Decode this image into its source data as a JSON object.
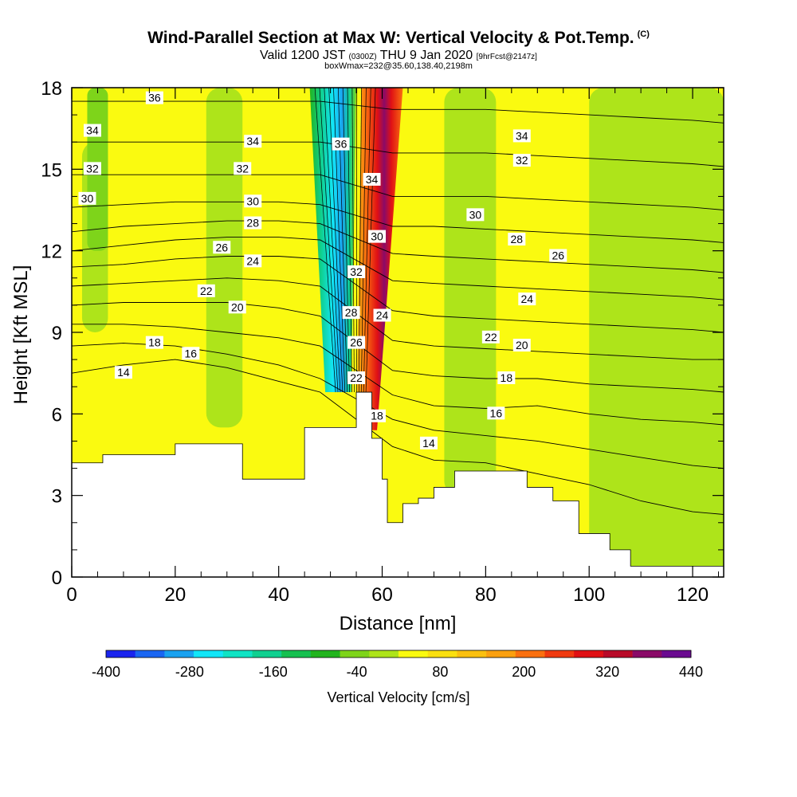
{
  "header": {
    "title": "Wind-Parallel Section at Max W: Vertical Velocity & Pot.Temp.",
    "copyright": "(C)",
    "valid_prefix": "Valid 1200 JST",
    "valid_utc": "(0300Z)",
    "valid_day": "THU 9 Jan 2020",
    "forecast": "[9hrFcst@2147z]",
    "box_info": "boxWmax=232@35.60,138.40,2198m"
  },
  "chart_data": {
    "type": "heatmap",
    "xlabel": "Distance [nm]",
    "ylabel": "Height [Kft MSL]",
    "xlim": [
      0,
      126
    ],
    "ylim": [
      0,
      18
    ],
    "x_ticks": [
      0,
      20,
      40,
      60,
      80,
      100,
      120
    ],
    "y_ticks": [
      0,
      3,
      6,
      9,
      12,
      15,
      18
    ],
    "colorbar": {
      "label": "Vertical Velocity [cm/s]",
      "min": -400,
      "max": 440,
      "tick_labels": [
        -400,
        -280,
        -160,
        -40,
        80,
        200,
        320,
        440
      ],
      "colors": [
        "#1a24ee",
        "#1a66f2",
        "#1aa2f0",
        "#12e6f8",
        "#10e4c4",
        "#10d090",
        "#16c050",
        "#22b41e",
        "#7ed41a",
        "#aee41a",
        "#fafa10",
        "#fae010",
        "#fac010",
        "#faa010",
        "#fa7010",
        "#f03a10",
        "#e01014",
        "#b80a28",
        "#8a0a68",
        "#6a0a90"
      ]
    },
    "terrain_kft": [
      [
        0,
        4.2
      ],
      [
        6,
        4.5
      ],
      [
        20,
        4.9
      ],
      [
        30,
        4.9
      ],
      [
        33,
        3.6
      ],
      [
        39,
        3.6
      ],
      [
        45,
        5.5
      ],
      [
        55,
        6.8
      ],
      [
        58,
        5.1
      ],
      [
        60,
        3.6
      ],
      [
        61,
        2.0
      ],
      [
        64,
        2.7
      ],
      [
        67,
        2.9
      ],
      [
        70,
        3.3
      ],
      [
        74,
        3.9
      ],
      [
        85,
        3.9
      ],
      [
        88,
        3.3
      ],
      [
        93,
        2.8
      ],
      [
        98,
        1.6
      ],
      [
        104,
        1.0
      ],
      [
        108,
        0.4
      ],
      [
        126,
        0.4
      ]
    ],
    "theta_contours": [
      {
        "label": "14",
        "y": [
          7.5,
          7.8,
          8.0,
          7.7,
          7.2,
          6.8,
          4.8,
          4.3,
          4.2,
          3.8,
          3.4,
          2.8,
          2.4,
          2.3
        ]
      },
      {
        "label": "16",
        "y": [
          8.5,
          8.6,
          8.5,
          8.2,
          7.8,
          7.3,
          5.8,
          5.4,
          5.2,
          5.0,
          4.7,
          4.4,
          4.1,
          4.0
        ]
      },
      {
        "label": "18",
        "y": [
          9.3,
          9.3,
          9.2,
          9.0,
          8.8,
          8.5,
          6.7,
          6.3,
          6.2,
          6.3,
          6.0,
          5.8,
          5.7,
          5.6
        ]
      },
      {
        "label": "20",
        "y": [
          10.0,
          10.1,
          10.1,
          10.1,
          9.9,
          9.6,
          7.6,
          7.4,
          7.3,
          7.3,
          7.1,
          7.0,
          6.9,
          6.8
        ]
      },
      {
        "label": "22",
        "y": [
          10.7,
          10.8,
          10.9,
          11.0,
          10.9,
          10.7,
          8.7,
          8.5,
          8.4,
          8.3,
          8.2,
          8.1,
          8.0,
          8.0
        ]
      },
      {
        "label": "24",
        "y": [
          11.4,
          11.5,
          11.7,
          11.8,
          11.8,
          11.7,
          9.8,
          9.6,
          9.5,
          9.4,
          9.3,
          9.2,
          9.1,
          9.0
        ]
      },
      {
        "label": "26",
        "y": [
          12.0,
          12.2,
          12.4,
          12.5,
          12.5,
          12.4,
          10.9,
          10.8,
          10.7,
          10.6,
          10.5,
          10.4,
          10.3,
          10.2
        ]
      },
      {
        "label": "28",
        "y": [
          12.7,
          12.9,
          13.0,
          13.1,
          13.1,
          13.0,
          11.9,
          11.8,
          11.7,
          11.6,
          11.5,
          11.4,
          11.3,
          11.2
        ]
      },
      {
        "label": "30",
        "y": [
          13.6,
          13.7,
          13.8,
          13.8,
          13.8,
          13.7,
          12.9,
          12.9,
          12.8,
          12.7,
          12.6,
          12.5,
          12.4,
          12.3
        ]
      },
      {
        "label": "32",
        "y": [
          14.8,
          14.8,
          14.8,
          14.8,
          14.8,
          14.8,
          14.0,
          14.0,
          14.0,
          13.9,
          13.8,
          13.7,
          13.6,
          13.5
        ]
      },
      {
        "label": "34",
        "y": [
          16.0,
          16.0,
          16.0,
          16.0,
          16.0,
          16.0,
          15.6,
          15.6,
          15.6,
          15.5,
          15.4,
          15.3,
          15.2,
          15.1
        ]
      },
      {
        "label": "36",
        "y": [
          17.5,
          17.5,
          17.5,
          17.5,
          17.5,
          17.5,
          17.2,
          17.2,
          17.2,
          17.1,
          17.0,
          16.9,
          16.8,
          16.7
        ]
      }
    ],
    "contour_x": [
      0,
      10,
      20,
      30,
      40,
      48,
      62,
      70,
      80,
      90,
      100,
      110,
      120,
      126
    ],
    "contour_labels": [
      {
        "text": "36",
        "x": 16,
        "y": 17.6
      },
      {
        "text": "34",
        "x": 4,
        "y": 16.4
      },
      {
        "text": "32",
        "x": 4,
        "y": 15.0
      },
      {
        "text": "30",
        "x": 3,
        "y": 13.9
      },
      {
        "text": "34",
        "x": 35,
        "y": 16.0
      },
      {
        "text": "32",
        "x": 33,
        "y": 15.0
      },
      {
        "text": "30",
        "x": 35,
        "y": 13.8
      },
      {
        "text": "28",
        "x": 35,
        "y": 13.0
      },
      {
        "text": "26",
        "x": 29,
        "y": 12.1
      },
      {
        "text": "24",
        "x": 35,
        "y": 11.6
      },
      {
        "text": "22",
        "x": 26,
        "y": 10.5
      },
      {
        "text": "20",
        "x": 32,
        "y": 9.9
      },
      {
        "text": "18",
        "x": 16,
        "y": 8.6
      },
      {
        "text": "16",
        "x": 23,
        "y": 8.2
      },
      {
        "text": "14",
        "x": 10,
        "y": 7.5
      },
      {
        "text": "36",
        "x": 52,
        "y": 15.9
      },
      {
        "text": "34",
        "x": 58,
        "y": 14.6
      },
      {
        "text": "32",
        "x": 55,
        "y": 11.2
      },
      {
        "text": "30",
        "x": 59,
        "y": 12.5
      },
      {
        "text": "28",
        "x": 54,
        "y": 9.7
      },
      {
        "text": "24",
        "x": 60,
        "y": 9.6
      },
      {
        "text": "26",
        "x": 55,
        "y": 8.6
      },
      {
        "text": "22",
        "x": 55,
        "y": 7.3
      },
      {
        "text": "18",
        "x": 59,
        "y": 5.9
      },
      {
        "text": "14",
        "x": 69,
        "y": 4.9
      },
      {
        "text": "34",
        "x": 87,
        "y": 16.2
      },
      {
        "text": "32",
        "x": 87,
        "y": 15.3
      },
      {
        "text": "30",
        "x": 78,
        "y": 13.3
      },
      {
        "text": "28",
        "x": 86,
        "y": 12.4
      },
      {
        "text": "26",
        "x": 94,
        "y": 11.8
      },
      {
        "text": "24",
        "x": 88,
        "y": 10.2
      },
      {
        "text": "22",
        "x": 81,
        "y": 8.8
      },
      {
        "text": "20",
        "x": 87,
        "y": 8.5
      },
      {
        "text": "18",
        "x": 84,
        "y": 7.3
      },
      {
        "text": "16",
        "x": 82,
        "y": 6.0
      }
    ],
    "velocity_features": [
      {
        "kind": "downdraft",
        "x_top": [
          46,
          55
        ],
        "x_bottom": [
          49,
          54
        ],
        "w_cm_s": -280
      },
      {
        "kind": "updraft",
        "x_top": [
          56,
          64
        ],
        "x_bottom": [
          55,
          59
        ],
        "w_cm_s": 400
      },
      {
        "kind": "weak_downdraft",
        "x_range": [
          2,
          7
        ],
        "y_range": [
          9,
          16
        ],
        "w_cm_s": -50
      },
      {
        "kind": "weak_downdraft",
        "x_range": [
          26,
          33
        ],
        "y_range": [
          5.5,
          18
        ],
        "w_cm_s": -50
      },
      {
        "kind": "weak_downdraft",
        "x_range": [
          72,
          82
        ],
        "y_range": [
          3,
          18
        ],
        "w_cm_s": -50
      },
      {
        "kind": "weak_downdraft",
        "x_range": [
          100,
          126
        ],
        "y_range": [
          0,
          18
        ],
        "w_cm_s": -45
      }
    ]
  }
}
